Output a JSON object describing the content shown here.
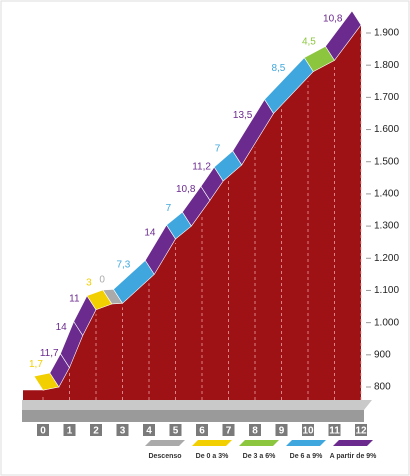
{
  "chart_data": {
    "type": "profile",
    "x": [
      0,
      0.6,
      1.0,
      1.5,
      2.0,
      2.6,
      3.0,
      4.2,
      5.0,
      5.6,
      6.3,
      6.8,
      7.5,
      8.7,
      10.2,
      11.0,
      12.0
    ],
    "values": [
      790,
      800,
      860,
      960,
      1040,
      1058,
      1060,
      1150,
      1260,
      1300,
      1380,
      1440,
      1490,
      1650,
      1780,
      1815,
      1925
    ],
    "grades": [
      1.7,
      11.7,
      14,
      11,
      3,
      0,
      7.3,
      14,
      7,
      10.8,
      11.2,
      7,
      13.5,
      8.5,
      4.5,
      10.8
    ],
    "grade_labels": [
      "1,7",
      "11,7",
      "14",
      "11",
      "3",
      "0",
      "7,3",
      "14",
      "7",
      "10,8",
      "11,2",
      "7",
      "13,5",
      "8,5",
      "4,5",
      "10,8"
    ],
    "segment_colors": [
      "#f2cf00",
      "#6b2a8e",
      "#6b2a8e",
      "#6b2a8e",
      "#f2cf00",
      "#aaaaaa",
      "#3fa7de",
      "#6b2a8e",
      "#3fa7de",
      "#6b2a8e",
      "#6b2a8e",
      "#3fa7de",
      "#6b2a8e",
      "#3fa7de",
      "#8cc63f",
      "#6b2a8e"
    ],
    "profile_color": "#9e1115",
    "xlim": [
      0,
      12
    ],
    "xticks": [
      0,
      1,
      2,
      3,
      4,
      5,
      6,
      7,
      8,
      9,
      10,
      11,
      12
    ],
    "ylim": [
      800,
      1900
    ],
    "yticks": [
      800,
      900,
      {
        "value": 1000,
        "label": "1.000"
      },
      {
        "value": 1100,
        "label": "1.100"
      },
      {
        "value": 1200,
        "label": "1.200"
      },
      {
        "value": 1300,
        "label": "1.300"
      },
      {
        "value": 1400,
        "label": "1.400"
      },
      {
        "value": 1500,
        "label": "1.500"
      },
      {
        "value": 1600,
        "label": "1.600"
      },
      {
        "value": 1700,
        "label": "1.700"
      },
      {
        "value": 1800,
        "label": "1.800"
      },
      {
        "value": 1900,
        "label": "1.900"
      }
    ],
    "legend": [
      {
        "name": "Descenso",
        "color": "#aaaaaa"
      },
      {
        "name": "De 0 a 3%",
        "color": "#f2cf00"
      },
      {
        "name": "De 3 a 6%",
        "color": "#8cc63f"
      },
      {
        "name": "De 6 a 9%",
        "color": "#3fa7de"
      },
      {
        "name": "A partir de 9%",
        "color": "#6b2a8e"
      }
    ]
  }
}
